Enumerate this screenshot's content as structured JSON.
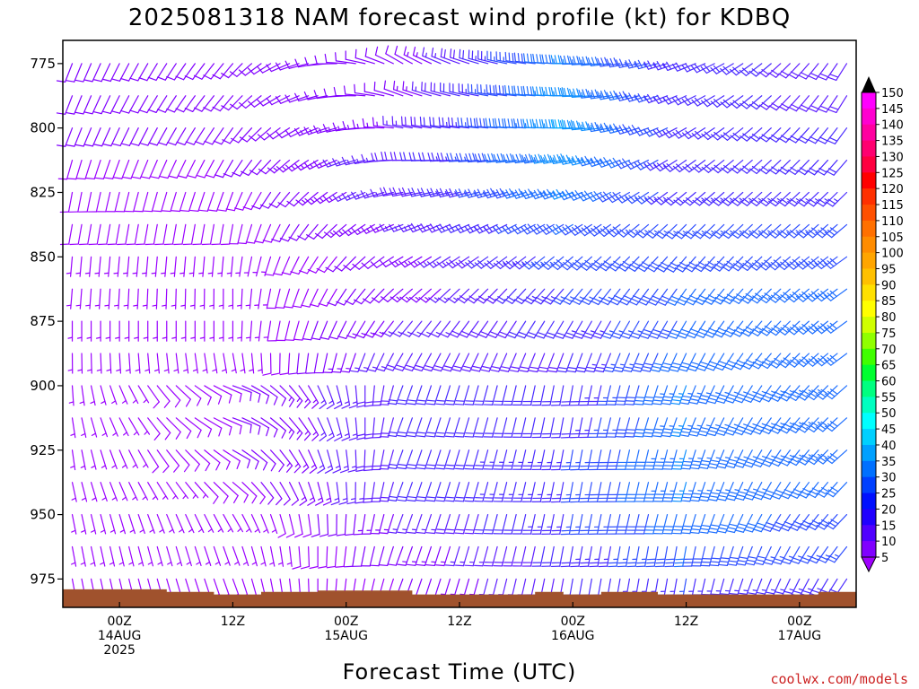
{
  "chart_data": {
    "type": "wind-barb",
    "title": "2025081318 NAM forecast wind profile (kt) for KDBQ",
    "xlabel": "Forecast Time (UTC)",
    "ylabel": "",
    "units": "kt",
    "y_axis": {
      "reversed": true,
      "ylim": [
        986,
        766
      ],
      "ticks": [
        "775",
        "800",
        "825",
        "850",
        "875",
        "900",
        "925",
        "950",
        "975"
      ]
    },
    "x_axis": {
      "ticks": [
        {
          "hours": 6,
          "l1": "00Z",
          "l2": "14AUG",
          "l3": "2025"
        },
        {
          "hours": 18,
          "l1": "12Z",
          "l2": "",
          "l3": ""
        },
        {
          "hours": 30,
          "l1": "00Z",
          "l2": "15AUG",
          "l3": ""
        },
        {
          "hours": 42,
          "l1": "12Z",
          "l2": "",
          "l3": ""
        },
        {
          "hours": 54,
          "l1": "00Z",
          "l2": "16AUG",
          "l3": ""
        },
        {
          "hours": 66,
          "l1": "12Z",
          "l2": "",
          "l3": ""
        },
        {
          "hours": 78,
          "l1": "00Z",
          "l2": "17AUG",
          "l3": ""
        }
      ],
      "range_hours": [
        0,
        84
      ]
    },
    "levels_hpa": [
      775,
      787.5,
      800,
      812.5,
      825,
      837.5,
      850,
      862.5,
      875,
      887.5,
      900,
      912.5,
      925,
      937.5,
      950,
      962.5,
      975
    ],
    "key_wind_profiles": [
      {
        "hours": 0,
        "speeds_kt": [
          10,
          10,
          10,
          8,
          8,
          8,
          6,
          6,
          5,
          5,
          5,
          5,
          5,
          5,
          5,
          5,
          5
        ],
        "dirs_deg": [
          200,
          200,
          200,
          195,
          190,
          190,
          185,
          185,
          180,
          180,
          180,
          175,
          175,
          170,
          170,
          170,
          170
        ]
      },
      {
        "hours": 18,
        "speeds_kt": [
          12,
          12,
          10,
          10,
          8,
          8,
          6,
          6,
          5,
          5,
          10,
          10,
          10,
          8,
          5,
          5,
          5
        ],
        "dirs_deg": [
          220,
          220,
          215,
          210,
          200,
          190,
          185,
          180,
          180,
          170,
          110,
          110,
          120,
          130,
          150,
          160,
          160
        ]
      },
      {
        "hours": 36,
        "speeds_kt": [
          10,
          12,
          15,
          18,
          18,
          15,
          12,
          12,
          15,
          18,
          20,
          20,
          20,
          20,
          15,
          12,
          10
        ],
        "dirs_deg": [
          300,
          290,
          280,
          270,
          260,
          250,
          240,
          230,
          220,
          210,
          200,
          200,
          200,
          200,
          200,
          200,
          200
        ]
      },
      {
        "hours": 54,
        "speeds_kt": [
          35,
          38,
          40,
          38,
          35,
          30,
          28,
          25,
          22,
          20,
          20,
          22,
          25,
          25,
          25,
          22,
          20
        ],
        "dirs_deg": [
          270,
          270,
          270,
          260,
          250,
          240,
          230,
          220,
          210,
          200,
          190,
          190,
          190,
          190,
          190,
          190,
          190
        ]
      },
      {
        "hours": 66,
        "speeds_kt": [
          22,
          22,
          22,
          22,
          22,
          25,
          28,
          30,
          30,
          32,
          35,
          35,
          35,
          35,
          32,
          30,
          25
        ],
        "dirs_deg": [
          250,
          245,
          240,
          235,
          230,
          225,
          220,
          215,
          210,
          205,
          200,
          200,
          195,
          195,
          195,
          190,
          190
        ]
      },
      {
        "hours": 84,
        "speeds_kt": [
          18,
          18,
          20,
          22,
          25,
          28,
          30,
          30,
          30,
          30,
          32,
          32,
          32,
          30,
          28,
          25,
          22
        ],
        "dirs_deg": [
          210,
          210,
          215,
          220,
          225,
          230,
          235,
          235,
          235,
          235,
          230,
          230,
          230,
          225,
          225,
          220,
          215
        ]
      }
    ],
    "terrain_hpa": [
      {
        "hours": 0,
        "p": 979
      },
      {
        "hours": 11,
        "p": 979
      },
      {
        "hours": 11,
        "p": 980
      },
      {
        "hours": 16,
        "p": 980
      },
      {
        "hours": 16,
        "p": 981
      },
      {
        "hours": 21,
        "p": 981
      },
      {
        "hours": 21,
        "p": 980
      },
      {
        "hours": 27,
        "p": 980
      },
      {
        "hours": 27,
        "p": 979.5
      },
      {
        "hours": 37,
        "p": 979.5
      },
      {
        "hours": 37,
        "p": 981
      },
      {
        "hours": 50,
        "p": 981
      },
      {
        "hours": 50,
        "p": 980
      },
      {
        "hours": 53,
        "p": 980
      },
      {
        "hours": 53,
        "p": 981
      },
      {
        "hours": 57,
        "p": 981
      },
      {
        "hours": 57,
        "p": 980
      },
      {
        "hours": 63,
        "p": 980
      },
      {
        "hours": 63,
        "p": 981
      },
      {
        "hours": 80,
        "p": 981
      },
      {
        "hours": 80,
        "p": 980
      },
      {
        "hours": 84,
        "p": 980
      }
    ],
    "colorbar": {
      "labels": [
        "150",
        "145",
        "140",
        "135",
        "130",
        "125",
        "120",
        "115",
        "110",
        "105",
        "100",
        "95",
        "90",
        "85",
        "80",
        "75",
        "70",
        "65",
        "60",
        "55",
        "50",
        "45",
        "40",
        "35",
        "30",
        "25",
        "20",
        "15",
        "10",
        "5"
      ],
      "colors": [
        "#ff00ff",
        "#ff00d0",
        "#ff00a0",
        "#ff0070",
        "#ff0040",
        "#ff0000",
        "#ff3000",
        "#ff5000",
        "#ff7000",
        "#ff8c00",
        "#ffa500",
        "#ffc000",
        "#ffe000",
        "#ffff00",
        "#d0ff00",
        "#90ff00",
        "#40ff00",
        "#00ff30",
        "#00ff80",
        "#00ffc0",
        "#00ffff",
        "#00d0ff",
        "#00a0ff",
        "#0070ff",
        "#0040ff",
        "#0010ff",
        "#2000ff",
        "#5000ff",
        "#8000ff",
        "#a000ff"
      ]
    }
  },
  "credit": "coolwx.com/models"
}
